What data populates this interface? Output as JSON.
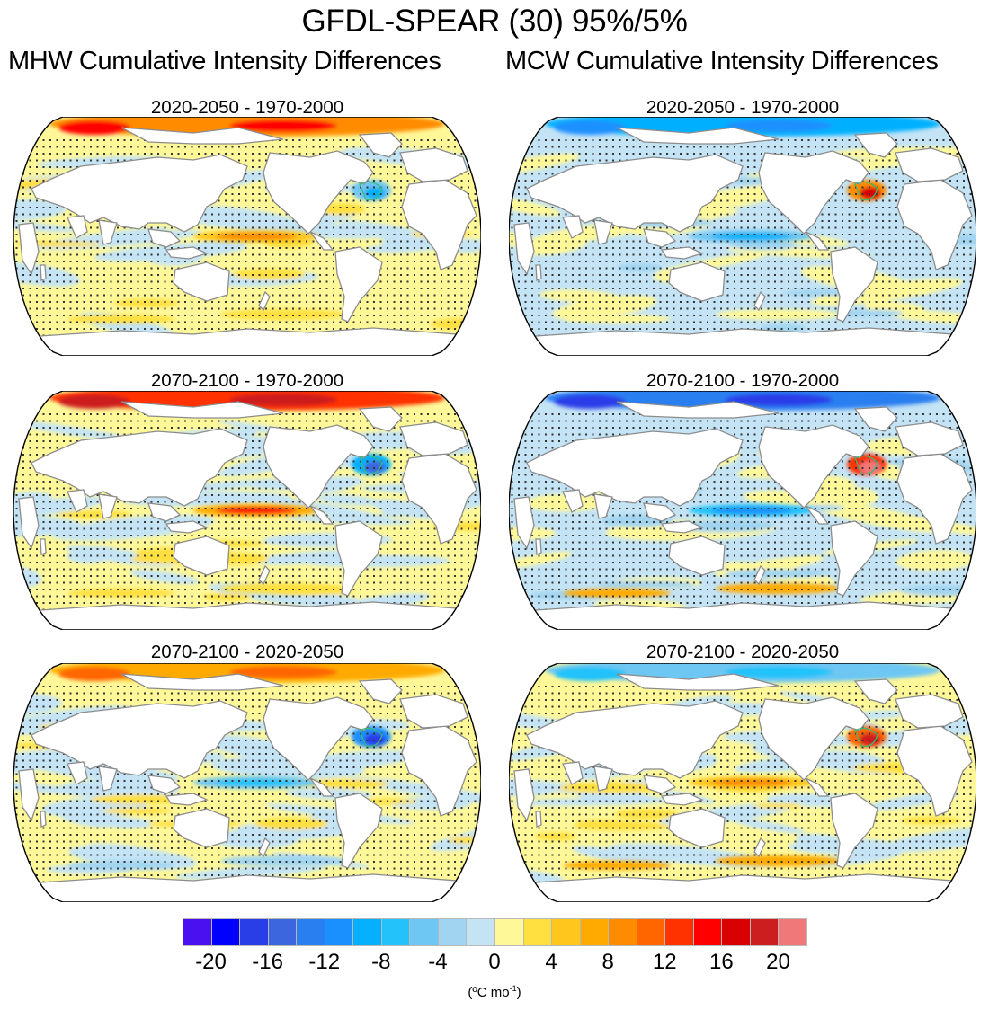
{
  "title": "GFDL-SPEAR (30) 95%/5%",
  "columns": [
    {
      "title": "MHW Cumulative Intensity Differences",
      "key": "mhw"
    },
    {
      "title": "MCW Cumulative Intensity Differences",
      "key": "mcw"
    }
  ],
  "chart_data": {
    "type": "heatmap",
    "title": "GFDL-SPEAR (30) 95%/5%",
    "description": "Global ocean maps (Robinson projection, Pacific-centered) of cumulative intensity differences with stippling for significance and green contour outlines",
    "colorbar": {
      "levels": [
        -20,
        -18,
        -16,
        -14,
        -12,
        -10,
        -8,
        -6,
        -4,
        -2,
        0,
        2,
        4,
        6,
        8,
        10,
        12,
        14,
        16,
        18,
        20
      ],
      "tick_labels": [
        "-20",
        "-16",
        "-12",
        "-8",
        "-4",
        "0",
        "4",
        "8",
        "12",
        "16",
        "20"
      ],
      "tick_values": [
        -20,
        -16,
        -12,
        -8,
        -4,
        0,
        4,
        8,
        12,
        16,
        20
      ],
      "units_prefix": "(ºC mo",
      "units_sup": "-1",
      "units_suffix": ")",
      "colors": [
        "#4a10f0",
        "#0000ff",
        "#2a3ee8",
        "#3b66dd",
        "#2a7ff0",
        "#1a90ff",
        "#04b0ff",
        "#24c2fa",
        "#6ec6f2",
        "#a0d4f0",
        "#c4e4f6",
        "#fff898",
        "#ffe040",
        "#ffc61e",
        "#ffaa00",
        "#ff8c00",
        "#ff6600",
        "#ff3200",
        "#ff0000",
        "#d80000",
        "#cc1e1e",
        "#f07878"
      ]
    },
    "panels": [
      {
        "column": "mhw",
        "row": 0,
        "title": "2020-2050 - 1970-2000",
        "base": "warm",
        "equatorial_pacific": 8,
        "arctic": 14,
        "north_atlantic": -10,
        "kuroshio": -10,
        "southern_ocean": 4
      },
      {
        "column": "mcw",
        "row": 0,
        "title": "2020-2050 - 1970-2000",
        "base": "cool",
        "equatorial_pacific": -10,
        "arctic": -12,
        "north_atlantic": 16,
        "kuroshio": 12,
        "southern_ocean": 2
      },
      {
        "column": "mhw",
        "row": 1,
        "title": "2070-2100 - 1970-2000",
        "base": "mixed",
        "equatorial_pacific": 14,
        "arctic": 18,
        "north_atlantic": -16,
        "kuroshio": -14,
        "southern_ocean": 6
      },
      {
        "column": "mcw",
        "row": 1,
        "title": "2070-2100 - 1970-2000",
        "base": "cool",
        "equatorial_pacific": -12,
        "arctic": -18,
        "north_atlantic": 20,
        "kuroshio": 16,
        "southern_ocean": 12
      },
      {
        "column": "mhw",
        "row": 2,
        "title": "2070-2100 - 2020-2050",
        "base": "mixed",
        "equatorial_pacific": -8,
        "arctic": 10,
        "north_atlantic": -18,
        "kuroshio": -14,
        "southern_ocean": -6
      },
      {
        "column": "mcw",
        "row": 2,
        "title": "2070-2100 - 2020-2050",
        "base": "mixed",
        "equatorial_pacific": 8,
        "arctic": -8,
        "north_atlantic": 18,
        "kuroshio": 8,
        "southern_ocean": 12
      }
    ]
  }
}
